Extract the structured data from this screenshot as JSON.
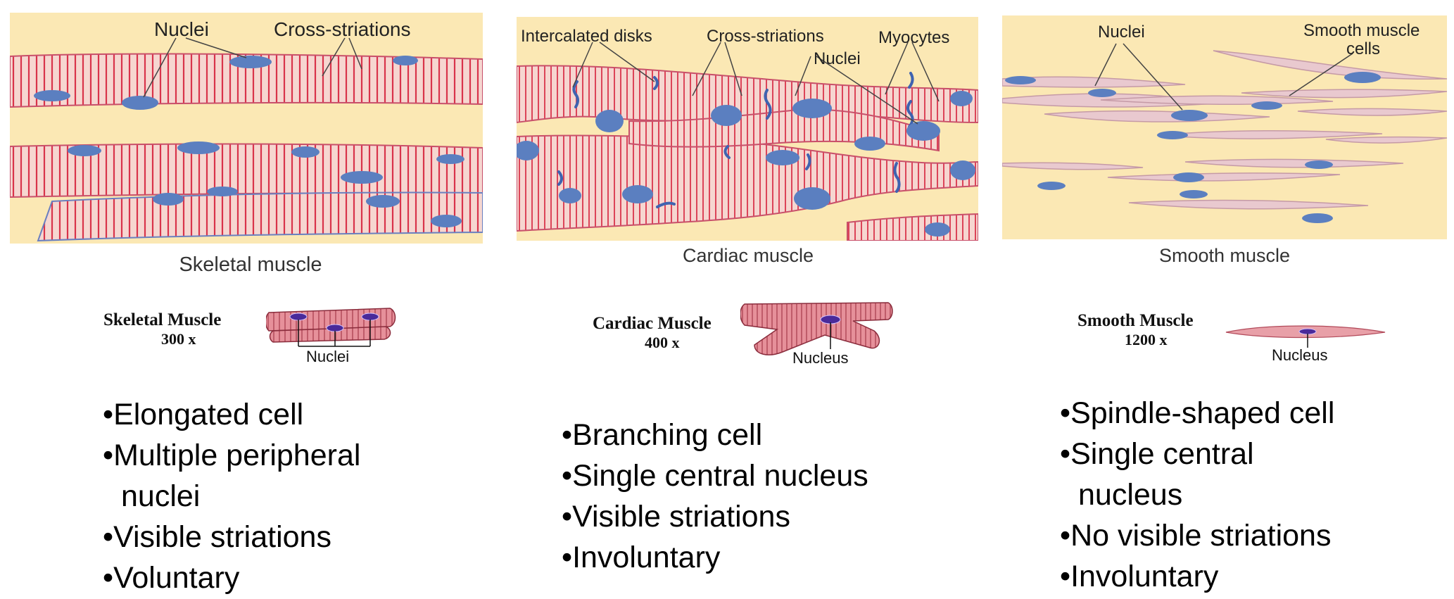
{
  "panels": {
    "skeletal": {
      "labels": {
        "nuclei": "Nuclei",
        "striations": "Cross-striations"
      },
      "caption": "Skeletal muscle"
    },
    "cardiac": {
      "labels": {
        "disks": "Intercalated disks",
        "striations": "Cross-striations",
        "myocytes": "Myocytes",
        "nuclei": "Nuclei"
      },
      "caption": "Cardiac muscle"
    },
    "smooth": {
      "labels": {
        "nuclei": "Nuclei",
        "cells_line1": "Smooth muscle",
        "cells_line2": "cells"
      },
      "caption": "Smooth muscle"
    }
  },
  "illustrations": {
    "skeletal": {
      "title": "Skeletal Muscle",
      "magnification": "300 x",
      "nucleus_label": "Nuclei"
    },
    "cardiac": {
      "title": "Cardiac Muscle",
      "magnification": "400 x",
      "nucleus_label": "Nucleus"
    },
    "smooth": {
      "title": "Smooth Muscle",
      "magnification": "1200 x",
      "nucleus_label": "Nucleus"
    }
  },
  "bullets": {
    "skeletal": [
      "Elongated cell",
      "Multiple peripheral",
      "nuclei",
      "Visible striations",
      "Voluntary"
    ],
    "cardiac": [
      "Branching cell",
      "Single central nucleus",
      "Visible striations",
      "Involuntary"
    ],
    "smooth": [
      "Spindle-shaped cell",
      "Single central",
      "nucleus",
      "No visible striations",
      "Involuntary"
    ]
  },
  "colors": {
    "background_tissue": "#fbe8b4",
    "fiber_fill": "#f6d6d0",
    "striation": "#d9334a",
    "nucleus": "#5b7fc0",
    "smooth_fiber": "#e9c9cf",
    "smooth_outline": "#c59aa6"
  }
}
